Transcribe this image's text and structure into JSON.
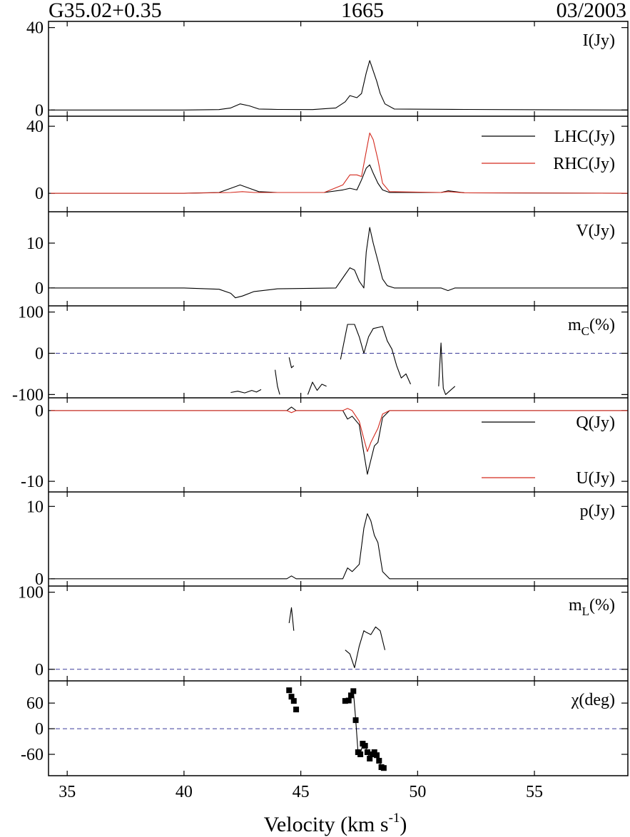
{
  "header": {
    "source": "G35.02+0.35",
    "frequency": "1665",
    "date": "03/2003"
  },
  "colors": {
    "black": "#000000",
    "red": "#d42a1e",
    "zero_line": "#3b3b9a"
  },
  "chart_data": {
    "type": "line",
    "xlabel_main": "Velocity (km s",
    "xlabel_sup": "-1",
    "xlabel_end": ")",
    "xlim": [
      34.2,
      59.0
    ],
    "xticks": [
      35,
      40,
      45,
      50,
      55
    ],
    "xtick_labels": [
      "35",
      "40",
      "45",
      "50",
      "55"
    ],
    "panels": [
      {
        "id": "I",
        "label": "I(Jy)",
        "ylim": [
          -3,
          43
        ],
        "yticks": [
          0,
          40
        ],
        "ytick_labels": [
          "0",
          "40"
        ],
        "zero_line": false,
        "legend": [],
        "series": [
          {
            "name": "I",
            "color": "#000000",
            "style": "line",
            "x": [
              34.3,
              40,
              41.5,
              42.0,
              42.4,
              42.8,
              43.2,
              44.0,
              45.5,
              46.5,
              46.9,
              47.1,
              47.4,
              47.6,
              47.8,
              47.95,
              48.1,
              48.25,
              48.4,
              48.6,
              49.0,
              52,
              59
            ],
            "y": [
              0,
              0,
              0.2,
              1,
              3,
              2,
              0.5,
              0.3,
              0.2,
              1,
              4,
              7,
              6,
              8,
              18,
              24,
              19,
              14,
              8,
              3,
              0.5,
              0.3,
              0
            ]
          }
        ]
      },
      {
        "id": "LR",
        "label": "",
        "ylim": [
          -11,
          46
        ],
        "yticks": [
          0,
          40
        ],
        "ytick_labels": [
          "0",
          "40"
        ],
        "zero_line": false,
        "legend": [
          {
            "text": "LHC(Jy)",
            "color": "#000000"
          },
          {
            "text": "RHC(Jy)",
            "color": "#d42a1e"
          }
        ],
        "series": [
          {
            "name": "LHC",
            "color": "#000000",
            "style": "line",
            "x": [
              34.3,
              40,
              41.5,
              42.0,
              42.4,
              42.8,
              43.2,
              44.0,
              46.0,
              46.8,
              47.1,
              47.4,
              47.6,
              47.8,
              47.95,
              48.1,
              48.3,
              48.5,
              48.8,
              51.0,
              51.3,
              52,
              59
            ],
            "y": [
              0,
              0,
              0.5,
              3,
              5,
              3,
              1,
              0.5,
              0.5,
              2,
              3,
              2,
              8,
              15,
              17,
              12,
              6,
              2,
              0.5,
              0.5,
              1.5,
              0.3,
              0
            ]
          },
          {
            "name": "RHC",
            "color": "#d42a1e",
            "style": "line",
            "x": [
              34.3,
              40,
              42.0,
              42.5,
              43.0,
              44.0,
              46.0,
              46.8,
              47.1,
              47.4,
              47.6,
              47.8,
              47.95,
              48.1,
              48.3,
              48.5,
              48.8,
              51.0,
              51.3,
              52,
              59
            ],
            "y": [
              0,
              0,
              0.5,
              1,
              0.5,
              0.5,
              0.5,
              5,
              11,
              11,
              10,
              25,
              36,
              32,
              20,
              6,
              1,
              0.5,
              1,
              0.3,
              0
            ]
          }
        ]
      },
      {
        "id": "V",
        "label": "V(Jy)",
        "ylim": [
          -4,
          17
        ],
        "yticks": [
          0,
          10
        ],
        "ytick_labels": [
          "0",
          "10"
        ],
        "zero_line": false,
        "legend": [],
        "series": [
          {
            "name": "V",
            "color": "#000000",
            "style": "line",
            "x": [
              34.3,
              40,
              41.5,
              42.0,
              42.2,
              42.5,
              43.0,
              44.0,
              46.5,
              46.9,
              47.1,
              47.3,
              47.5,
              47.7,
              47.8,
              47.95,
              48.1,
              48.3,
              48.5,
              48.7,
              49.0,
              51.0,
              51.3,
              51.6,
              52,
              59
            ],
            "y": [
              0,
              0,
              -0.3,
              -1.2,
              -2.2,
              -1.8,
              -0.8,
              -0.2,
              0,
              3,
              4.5,
              4,
              1.5,
              0,
              8,
              13.5,
              10,
              6,
              2,
              0.5,
              0,
              0,
              -0.6,
              0,
              0,
              0
            ]
          }
        ]
      },
      {
        "id": "mC",
        "label": "m",
        "label_sub": "C",
        "label_end": "(%)",
        "ylim": [
          -108,
          115
        ],
        "yticks": [
          -100,
          0,
          100
        ],
        "ytick_labels": [
          "-100",
          "0",
          "100"
        ],
        "zero_line": true,
        "legend": [],
        "series": [
          {
            "name": "mC1",
            "color": "#000000",
            "style": "line",
            "x": [
              42.0,
              42.3,
              42.6,
              42.9,
              43.1,
              43.3
            ],
            "y": [
              -95,
              -92,
              -96,
              -90,
              -94,
              -88
            ]
          },
          {
            "name": "mC2",
            "color": "#000000",
            "style": "line",
            "x": [
              43.9,
              44.0,
              44.1
            ],
            "y": [
              -40,
              -80,
              -100
            ]
          },
          {
            "name": "mC3",
            "color": "#000000",
            "style": "line",
            "x": [
              44.5,
              44.6,
              44.7
            ],
            "y": [
              -10,
              -35,
              -30
            ]
          },
          {
            "name": "mC4",
            "color": "#000000",
            "style": "line",
            "x": [
              45.3,
              45.5,
              45.7,
              45.9,
              46.1
            ],
            "y": [
              -100,
              -70,
              -90,
              -75,
              -80
            ]
          },
          {
            "name": "mC5",
            "color": "#000000",
            "style": "line",
            "x": [
              46.7,
              47.0,
              47.3,
              47.5,
              47.7,
              47.9,
              48.1,
              48.5,
              48.7,
              48.9,
              49.1,
              49.3,
              49.5,
              49.7
            ],
            "y": [
              -15,
              70,
              70,
              40,
              0,
              40,
              60,
              65,
              30,
              10,
              -30,
              -60,
              -50,
              -75
            ]
          },
          {
            "name": "mC6",
            "color": "#000000",
            "style": "line",
            "x": [
              50.9,
              51.0,
              51.1,
              51.2,
              51.4,
              51.6
            ],
            "y": [
              -80,
              25,
              -85,
              -100,
              -90,
              -80
            ]
          }
        ]
      },
      {
        "id": "QU",
        "label": "",
        "ylim": [
          -11.5,
          1.8
        ],
        "yticks": [
          -10,
          0
        ],
        "ytick_labels": [
          "-10",
          "0"
        ],
        "zero_line": false,
        "legend": [
          {
            "text": "Q(Jy)",
            "color": "#000000"
          },
          {
            "text": "U(Jy)",
            "color": "#d42a1e"
          }
        ],
        "series": [
          {
            "name": "Q",
            "color": "#000000",
            "style": "line",
            "x": [
              34.3,
              44.4,
              44.6,
              44.8,
              46.8,
              47.0,
              47.2,
              47.5,
              47.7,
              47.85,
              48.0,
              48.15,
              48.3,
              48.5,
              48.8,
              59
            ],
            "y": [
              0,
              0,
              0.5,
              0,
              0,
              -1.2,
              -0.8,
              -2,
              -6,
              -9,
              -7,
              -5,
              -4.5,
              -1,
              0,
              0
            ]
          },
          {
            "name": "U",
            "color": "#d42a1e",
            "style": "line",
            "x": [
              34.3,
              44.4,
              44.6,
              44.8,
              46.8,
              47.0,
              47.2,
              47.5,
              47.7,
              47.85,
              48.0,
              48.15,
              48.3,
              48.5,
              48.8,
              59
            ],
            "y": [
              0,
              0,
              -0.3,
              0,
              0,
              0.3,
              0,
              -1.5,
              -4,
              -5.8,
              -4.5,
              -3.5,
              -2.5,
              -0.5,
              0,
              0
            ]
          }
        ]
      },
      {
        "id": "p",
        "label": "p(Jy)",
        "ylim": [
          -1,
          12
        ],
        "yticks": [
          0,
          10
        ],
        "ytick_labels": [
          "0",
          "10"
        ],
        "zero_line": false,
        "legend": [],
        "series": [
          {
            "name": "p",
            "color": "#000000",
            "style": "line",
            "x": [
              34.3,
              44.4,
              44.6,
              44.8,
              46.8,
              47.0,
              47.2,
              47.5,
              47.7,
              47.85,
              48.0,
              48.15,
              48.3,
              48.5,
              48.8,
              59
            ],
            "y": [
              0,
              0,
              0.4,
              0,
              0,
              1.5,
              1,
              2,
              7,
              9,
              8,
              6,
              5,
              1,
              0,
              0
            ]
          }
        ]
      },
      {
        "id": "mL",
        "label": "m",
        "label_sub": "L",
        "label_end": "(%)",
        "ylim": [
          -15,
          108
        ],
        "yticks": [
          0,
          100
        ],
        "ytick_labels": [
          "0",
          "100"
        ],
        "zero_line": true,
        "legend": [],
        "series": [
          {
            "name": "mL1",
            "color": "#000000",
            "style": "line",
            "x": [
              44.5,
              44.6,
              44.7
            ],
            "y": [
              60,
              80,
              50
            ]
          },
          {
            "name": "mL2",
            "color": "#000000",
            "style": "line",
            "x": [
              46.9,
              47.1,
              47.3,
              47.5,
              47.7,
              47.8,
              48.0,
              48.2,
              48.4,
              48.6
            ],
            "y": [
              25,
              20,
              2,
              30,
              50,
              48,
              45,
              55,
              50,
              25
            ]
          }
        ]
      },
      {
        "id": "chi",
        "label": "χ(deg)",
        "ylim": [
          -110,
          112
        ],
        "yticks": [
          -60,
          0,
          60
        ],
        "ytick_labels": [
          "-60",
          "0",
          "60"
        ],
        "zero_line": true,
        "legend": [],
        "series": [
          {
            "name": "chi_line",
            "color": "#000000",
            "style": "line",
            "x": [
              46.9,
              47.05,
              47.15,
              47.25,
              47.35,
              47.45,
              47.55,
              47.65,
              47.75,
              47.85,
              47.95,
              48.05,
              48.15,
              48.25,
              48.35,
              48.45,
              48.55
            ],
            "y": [
              65,
              66,
              78,
              88,
              20,
              -55,
              -60,
              -35,
              -40,
              -55,
              -70,
              -60,
              -55,
              -62,
              -75,
              -90,
              -92
            ]
          },
          {
            "name": "chi_pts_a",
            "color": "#000000",
            "style": "marker",
            "x": [
              44.5,
              44.6,
              44.7,
              44.8
            ],
            "y": [
              90,
              75,
              65,
              45
            ]
          },
          {
            "name": "chi_pts_b",
            "color": "#000000",
            "style": "marker",
            "x": [
              46.9,
              47.05,
              47.15,
              47.25,
              47.35,
              47.45,
              47.55,
              47.65,
              47.75,
              47.85,
              47.95,
              48.05,
              48.15,
              48.25,
              48.35,
              48.45,
              48.55
            ],
            "y": [
              65,
              66,
              78,
              88,
              20,
              -55,
              -60,
              -35,
              -40,
              -55,
              -70,
              -60,
              -55,
              -62,
              -75,
              -90,
              -92
            ]
          }
        ]
      }
    ]
  }
}
